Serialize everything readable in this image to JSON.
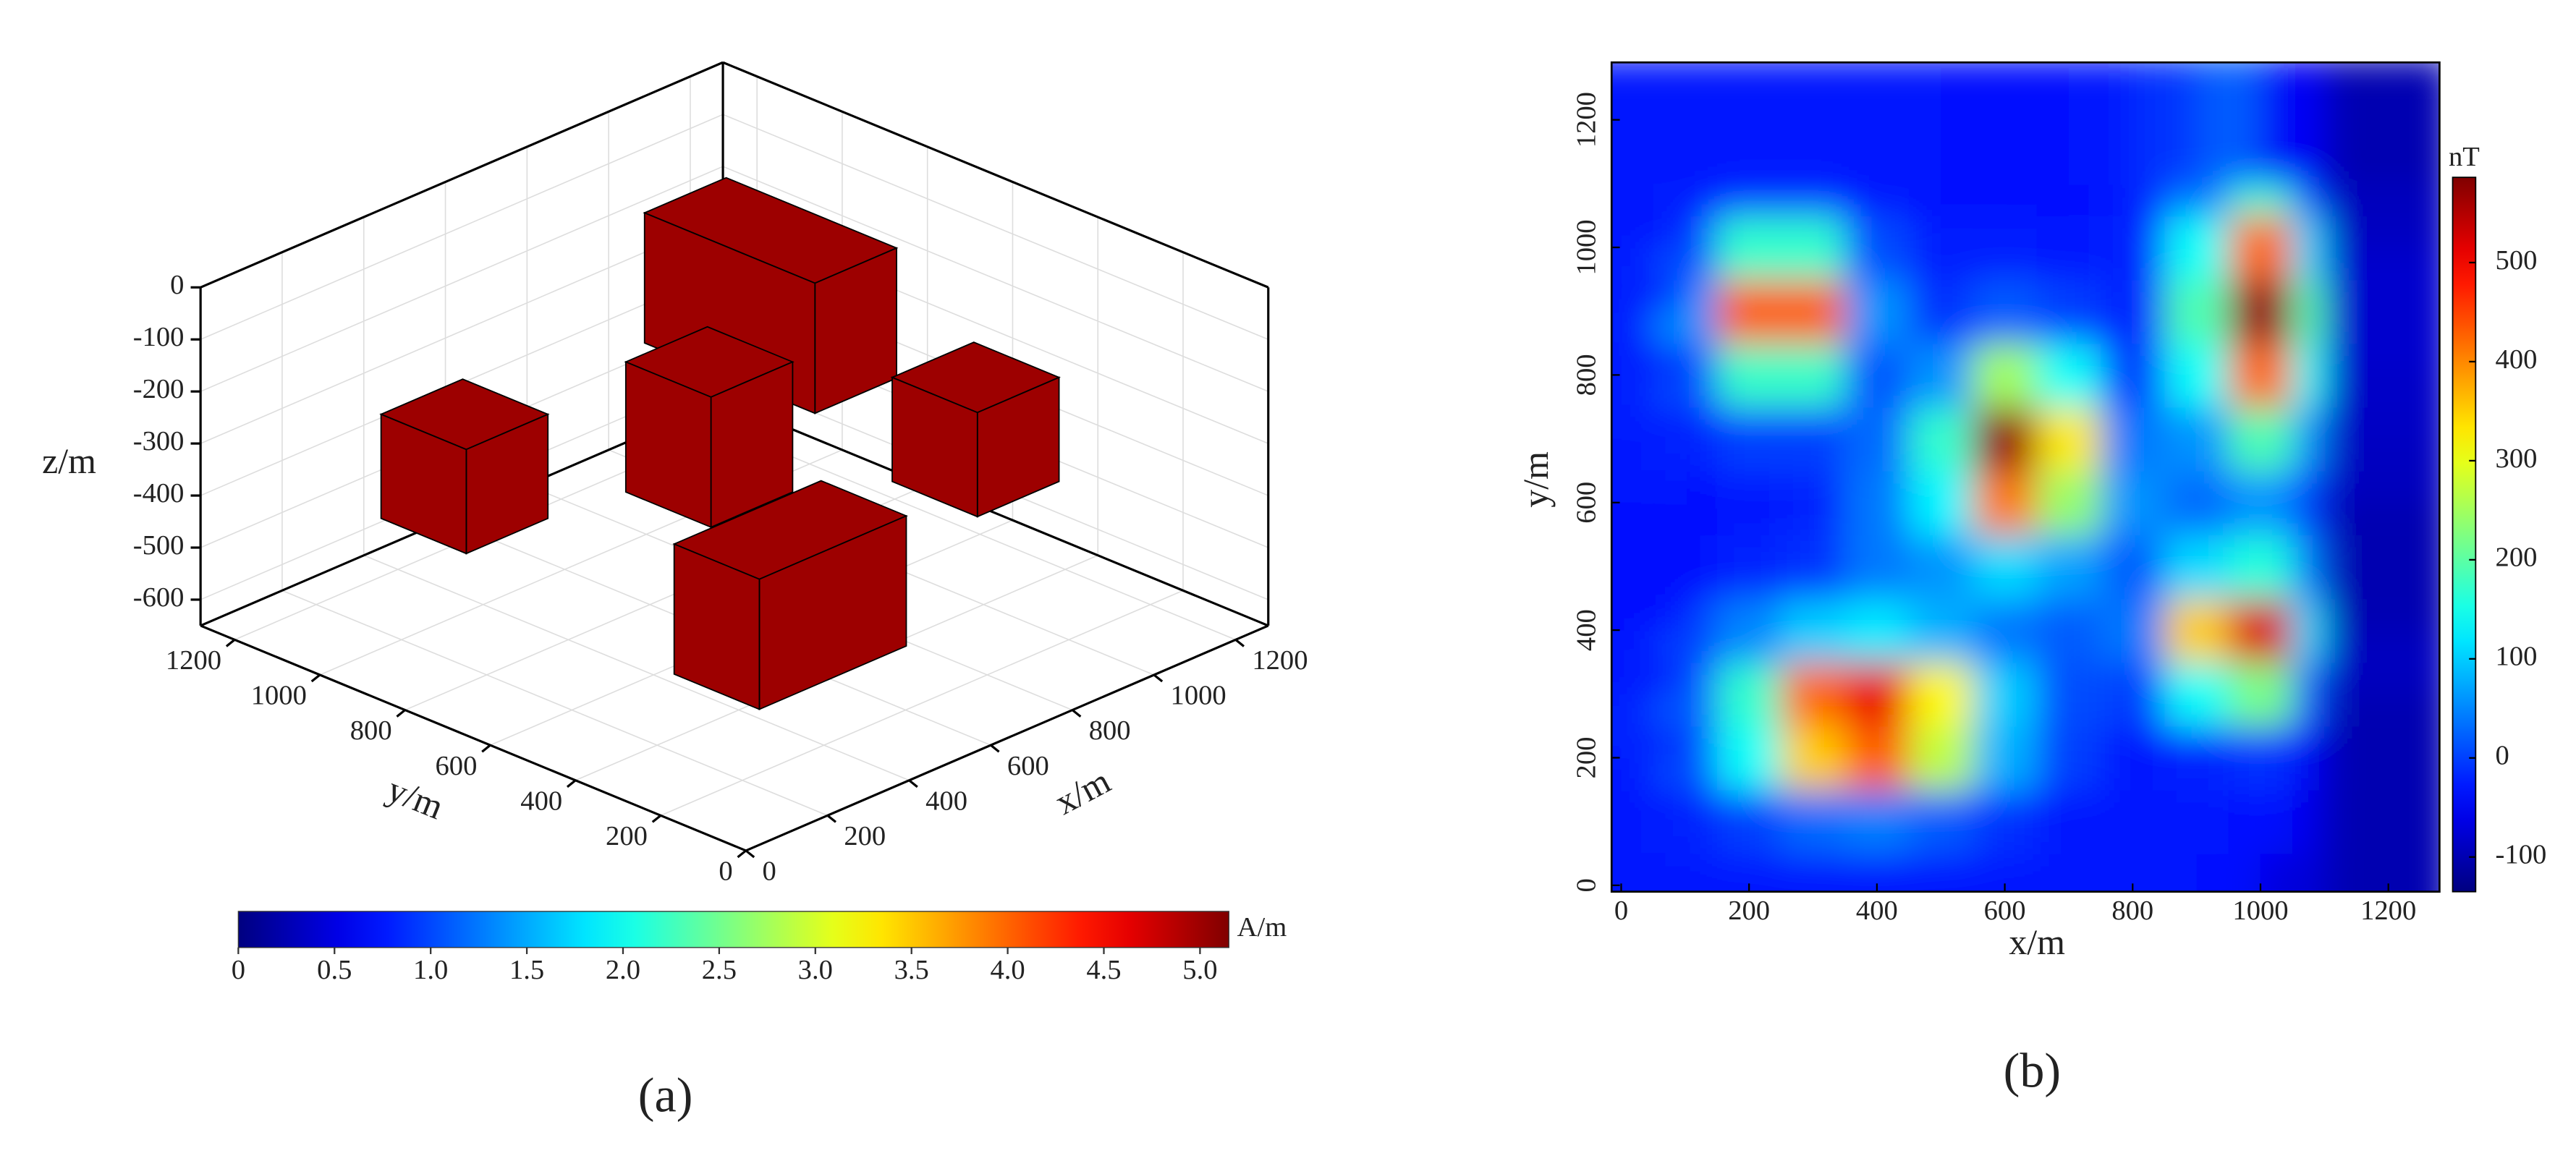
{
  "chart_data": [
    {
      "type": "blocks3d",
      "panel_label": "(a)",
      "xlabel": "x/m",
      "ylabel": "y/m",
      "zlabel": "z/m",
      "xlim": [
        0,
        1280
      ],
      "ylim": [
        0,
        1280
      ],
      "zlim": [
        -650,
        0
      ],
      "xticks": [
        0,
        200,
        400,
        600,
        800,
        1000,
        1200
      ],
      "yticks": [
        0,
        200,
        400,
        600,
        800,
        1000,
        1200
      ],
      "zticks": [
        0,
        -100,
        -200,
        -300,
        -400,
        -500,
        -600
      ],
      "grid": true,
      "blocks": [
        {
          "x": [
            150,
            350
          ],
          "y": [
            800,
            1000
          ],
          "z": [
            -400,
            -200
          ],
          "value": 5
        },
        {
          "x": [
            520,
            720
          ],
          "y": [
            580,
            780
          ],
          "z": [
            -400,
            -150
          ],
          "value": 5
        },
        {
          "x": [
            900,
            1100
          ],
          "y": [
            700,
            1100
          ],
          "z": [
            -350,
            -100
          ],
          "value": 5
        },
        {
          "x": [
            870,
            1070
          ],
          "y": [
            290,
            490
          ],
          "z": [
            -400,
            -200
          ],
          "value": 5
        },
        {
          "x": [
            200,
            560
          ],
          "y": [
            160,
            360
          ],
          "z": [
            -500,
            -250
          ],
          "value": 5
        }
      ],
      "colorbar": {
        "label": "A/m",
        "lim": [
          0,
          5.15
        ],
        "colormap": "jet",
        "ticks": [
          0,
          0.5,
          {
            "value": 1,
            "label": "1.0"
          },
          1.5,
          {
            "value": 2,
            "label": "2.0"
          },
          2.5,
          {
            "value": 3,
            "label": "3.0"
          },
          3.5,
          {
            "value": 4,
            "label": "4.0"
          },
          4.5,
          {
            "value": 5,
            "label": "5.0"
          }
        ]
      }
    },
    {
      "type": "contour",
      "panel_label": "(b)",
      "xlabel": "x/m",
      "ylabel": "y/m",
      "xlim": [
        -15,
        1280
      ],
      "ylim": [
        -10,
        1290
      ],
      "xticks": [
        0,
        200,
        400,
        600,
        800,
        1000,
        1200
      ],
      "yticks": [
        0,
        200,
        400,
        600,
        800,
        1000,
        1200
      ],
      "x": [
        0,
        100,
        200,
        300,
        400,
        500,
        600,
        700,
        800,
        900,
        1000,
        1100,
        1200
      ],
      "y": [
        0,
        100,
        200,
        300,
        400,
        500,
        600,
        700,
        800,
        900,
        1000,
        1100,
        1200
      ],
      "z": [
        [
          -30,
          -30,
          -30,
          -30,
          -30,
          -30,
          -30,
          -30,
          -30,
          -30,
          -40,
          -70,
          -100
        ],
        [
          -30,
          -20,
          0,
          30,
          45,
          20,
          -10,
          -30,
          -30,
          -30,
          -40,
          -60,
          -100
        ],
        [
          -30,
          10,
          140,
          350,
          430,
          270,
          80,
          0,
          -30,
          -20,
          -10,
          -50,
          -100
        ],
        [
          -20,
          20,
          170,
          420,
          510,
          320,
          100,
          10,
          0,
          140,
          220,
          20,
          -100
        ],
        [
          -30,
          0,
          50,
          100,
          120,
          80,
          40,
          20,
          40,
          350,
          520,
          110,
          -90
        ],
        [
          -40,
          -40,
          -20,
          -10,
          40,
          60,
          110,
          70,
          20,
          110,
          160,
          40,
          -100
        ],
        [
          -40,
          -40,
          -30,
          -20,
          40,
          130,
          410,
          240,
          60,
          30,
          60,
          0,
          -100
        ],
        [
          -30,
          -20,
          0,
          0,
          30,
          170,
          570,
          330,
          40,
          60,
          190,
          60,
          -90
        ],
        [
          -25,
          10,
          175,
          175,
          15,
          60,
          250,
          140,
          -5,
          140,
          420,
          140,
          -85
        ],
        [
          -25,
          60,
          430,
          430,
          60,
          -10,
          20,
          0,
          -20,
          190,
          570,
          190,
          -80
        ],
        [
          -25,
          10,
          170,
          170,
          10,
          -25,
          -25,
          -30,
          -20,
          140,
          420,
          110,
          -80
        ],
        [
          -30,
          -25,
          -10,
          -10,
          -30,
          -35,
          -40,
          -35,
          -25,
          40,
          170,
          10,
          -90
        ],
        [
          -30,
          -30,
          -30,
          -30,
          -30,
          -30,
          -40,
          -40,
          -30,
          -10,
          20,
          -50,
          -100
        ]
      ],
      "colorbar": {
        "label": "nT",
        "lim": [
          -135,
          586
        ],
        "colormap": "jet",
        "ticks": [
          -100,
          0,
          100,
          200,
          300,
          400,
          500
        ]
      }
    }
  ]
}
